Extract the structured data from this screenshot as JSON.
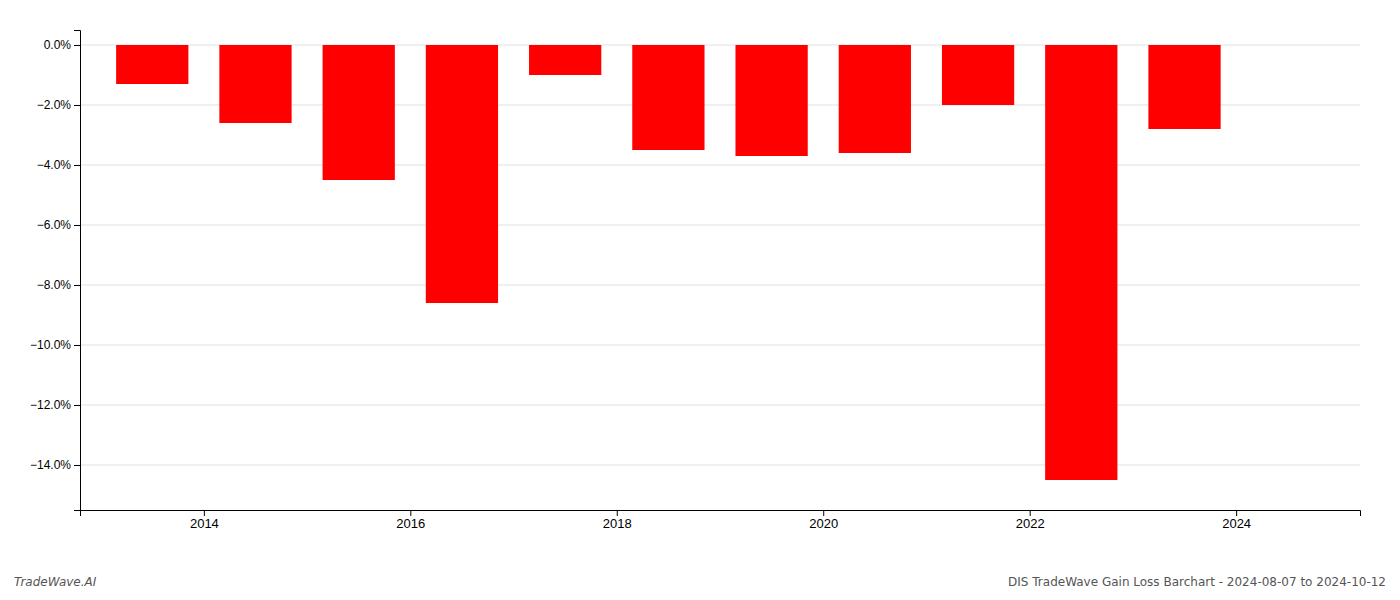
{
  "chart_data": {
    "type": "bar",
    "x": [
      2013.5,
      2014.5,
      2015.5,
      2016.5,
      2017.5,
      2018.5,
      2019.5,
      2020.5,
      2021.5,
      2022.5,
      2023.5
    ],
    "values": [
      -1.3,
      -2.6,
      -4.5,
      -8.6,
      -1.0,
      -3.5,
      -3.7,
      -3.6,
      -2.0,
      -14.5,
      -2.8
    ],
    "color": "#ff0000",
    "xlim": [
      2012.8,
      2025.2
    ],
    "xticks": [
      2014,
      2016,
      2018,
      2020,
      2022,
      2024
    ],
    "ylim": [
      -15.5,
      0.5
    ],
    "yticks": [
      {
        "value": 0.0,
        "label": "0.0%"
      },
      {
        "value": -2.0,
        "label": "−2.0%"
      },
      {
        "value": -4.0,
        "label": "−4.0%"
      },
      {
        "value": -6.0,
        "label": "−6.0%"
      },
      {
        "value": -8.0,
        "label": "−8.0%"
      },
      {
        "value": -10.0,
        "label": "−10.0%"
      },
      {
        "value": -12.0,
        "label": "−12.0%"
      },
      {
        "value": -14.0,
        "label": "−14.0%"
      }
    ],
    "grid": true,
    "annotations": [
      "TradeWave.AI",
      "DIS TradeWave Gain Loss Barchart - 2024-08-07 to 2024-10-12"
    ]
  }
}
